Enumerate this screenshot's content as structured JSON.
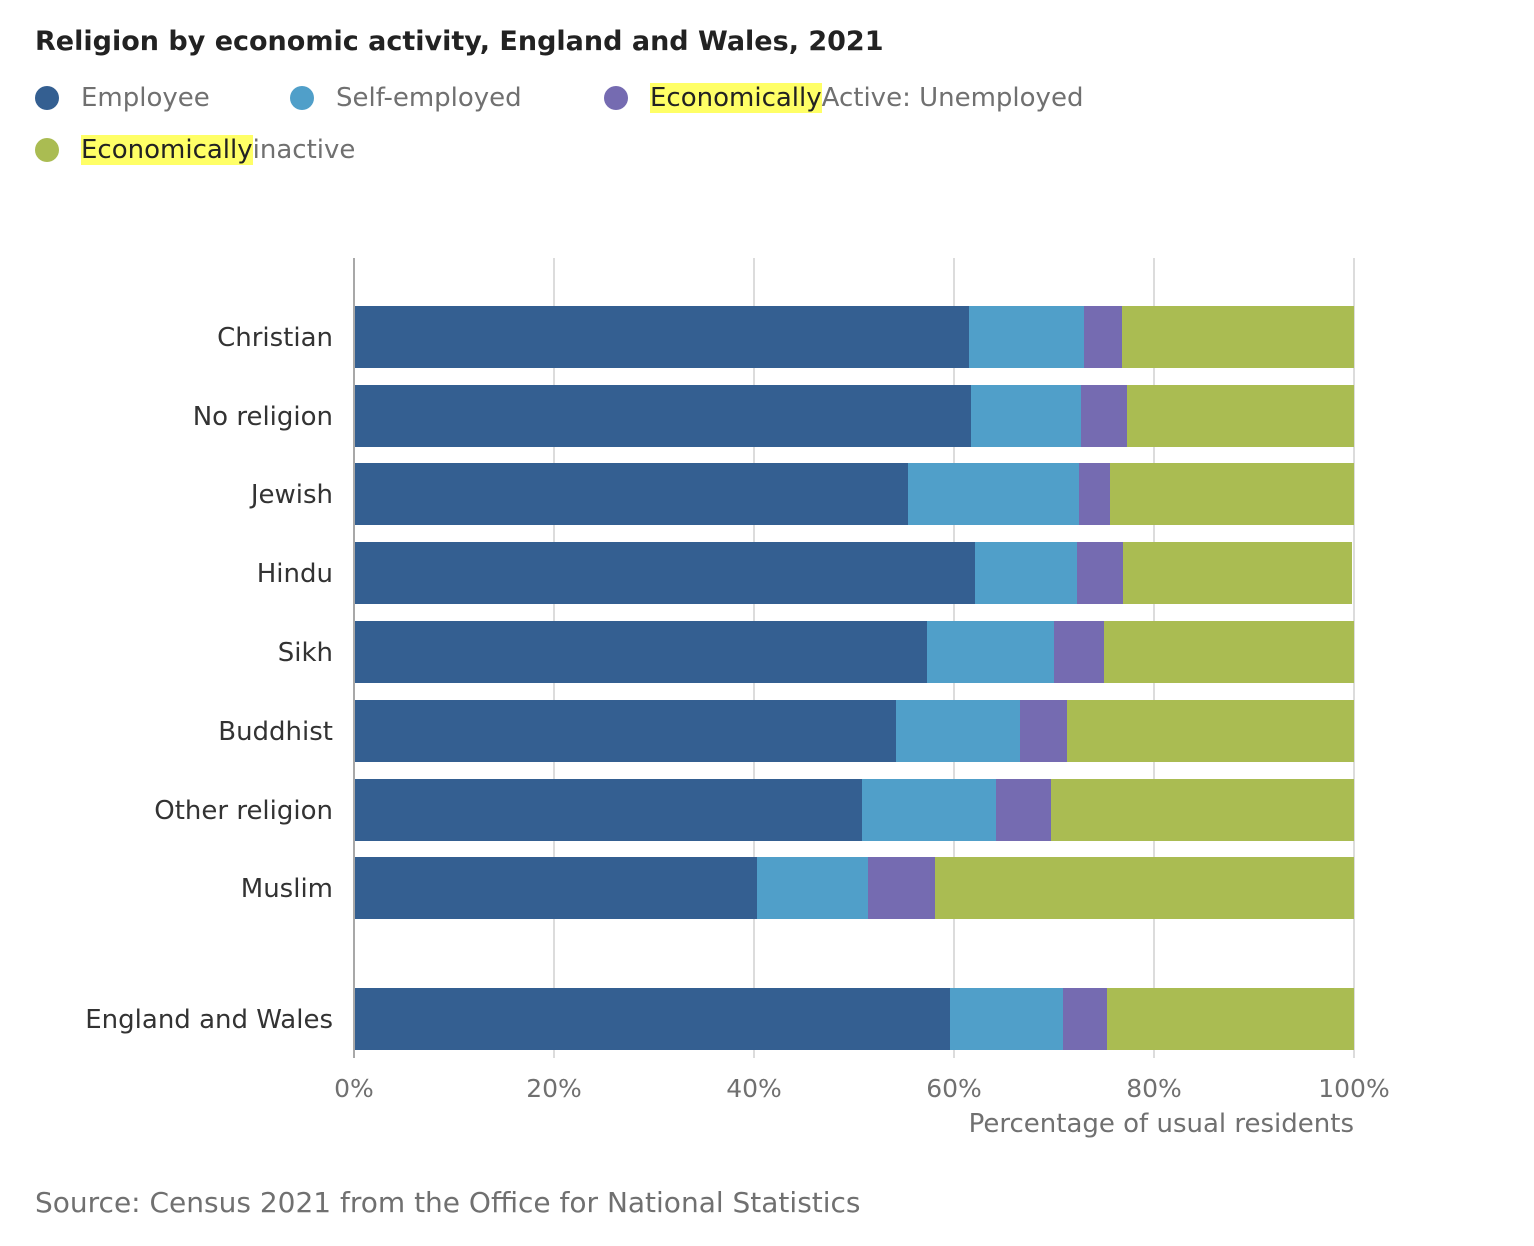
{
  "chart_data": {
    "type": "bar",
    "orientation": "horizontal",
    "stacked": true,
    "title": "Religion by economic activity, England and Wales, 2021",
    "xlabel": "Percentage of usual residents",
    "ylabel": "",
    "xlim": [
      0,
      100
    ],
    "x_ticks": [
      "0%",
      "20%",
      "40%",
      "60%",
      "80%",
      "100%"
    ],
    "grid": "vertical",
    "legend_position": "top-left",
    "categories": [
      "Christian",
      "No religion",
      "Jewish",
      "Hindu",
      "Sikh",
      "Buddhist",
      "Other religion",
      "Muslim",
      "England and Wales"
    ],
    "series": [
      {
        "name": "Employee",
        "color": "#345f91",
        "values": [
          61.5,
          61.7,
          55.4,
          62.1,
          57.3,
          54.2,
          50.8,
          40.3,
          59.6
        ]
      },
      {
        "name": "Self-employed",
        "color": "#509fc9",
        "values": [
          11.5,
          11.0,
          17.1,
          10.2,
          12.7,
          12.4,
          13.4,
          11.1,
          11.3
        ]
      },
      {
        "name": "Economically Active: Unemployed",
        "color": "#756bb1",
        "values": [
          3.8,
          4.6,
          3.1,
          4.6,
          5.0,
          4.7,
          5.5,
          6.7,
          4.4
        ]
      },
      {
        "name": "Economically inactive",
        "color": "#aabc52",
        "values": [
          23.2,
          22.7,
          24.4,
          22.9,
          25.0,
          28.7,
          30.3,
          41.9,
          24.7
        ]
      }
    ]
  },
  "legend": {
    "items": [
      {
        "label": "Employee",
        "color": "#345f91"
      },
      {
        "label": "Self-employed",
        "color": "#509fc9"
      },
      {
        "highlight": "Economically",
        "rest": " Active: Unemployed",
        "color": "#756bb1"
      },
      {
        "highlight": "Economically",
        "rest": " inactive",
        "color": "#aabc52"
      }
    ]
  },
  "source": "Source: Census 2021 from the Office for National Statistics"
}
